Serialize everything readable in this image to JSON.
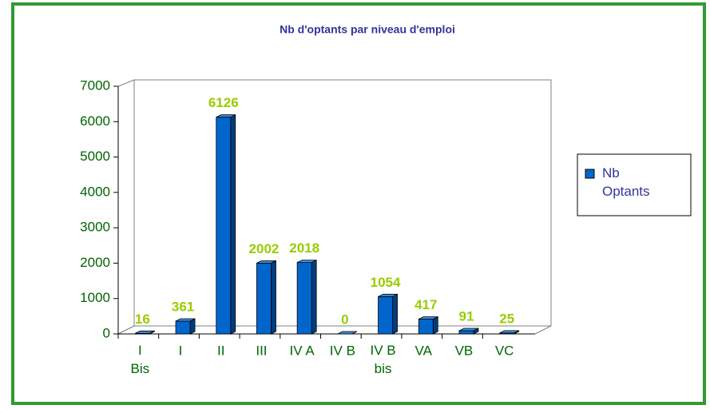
{
  "chart_data": {
    "type": "bar3d",
    "title": "Nb d'optants par niveau d'emploi",
    "categories": [
      "I\nBis",
      "I",
      "II",
      "III",
      "IV A",
      "IV B",
      "IV B\nbis",
      "VA",
      "VB",
      "VC"
    ],
    "series": [
      {
        "name": "Nb\nOptants",
        "color": "#0066cc",
        "values": [
          16,
          361,
          6126,
          2002,
          2018,
          0,
          1054,
          417,
          91,
          25
        ]
      }
    ],
    "ylim": [
      0,
      7000
    ],
    "yticks": [
      0,
      1000,
      2000,
      3000,
      4000,
      5000,
      6000,
      7000
    ],
    "legend": "right",
    "data_labels": true
  }
}
